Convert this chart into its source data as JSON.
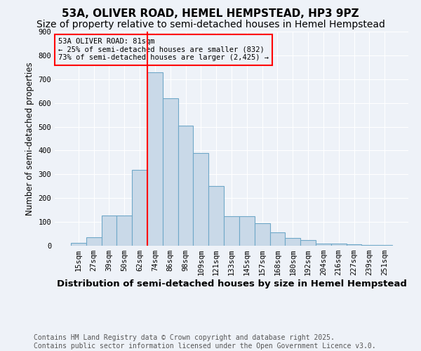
{
  "title": "53A, OLIVER ROAD, HEMEL HEMPSTEAD, HP3 9PZ",
  "subtitle": "Size of property relative to semi-detached houses in Hemel Hempstead",
  "xlabel": "Distribution of semi-detached houses by size in Hemel Hempstead",
  "ylabel": "Number of semi-detached properties",
  "footnote": "Contains HM Land Registry data © Crown copyright and database right 2025.\nContains public sector information licensed under the Open Government Licence v3.0.",
  "bins": [
    "15sqm",
    "27sqm",
    "39sqm",
    "50sqm",
    "62sqm",
    "74sqm",
    "86sqm",
    "98sqm",
    "109sqm",
    "121sqm",
    "133sqm",
    "145sqm",
    "157sqm",
    "168sqm",
    "180sqm",
    "192sqm",
    "204sqm",
    "216sqm",
    "227sqm",
    "239sqm",
    "251sqm"
  ],
  "values": [
    11,
    36,
    127,
    127,
    320,
    730,
    620,
    505,
    390,
    250,
    125,
    125,
    95,
    55,
    32,
    23,
    10,
    8,
    5,
    4,
    4
  ],
  "bar_color": "#c9d9e8",
  "bar_edge_color": "#6fa8c8",
  "vline_bin_index": 5,
  "property_sqm": 81,
  "vline_color": "red",
  "annotation_text": "53A OLIVER ROAD: 81sqm\n← 25% of semi-detached houses are smaller (832)\n73% of semi-detached houses are larger (2,425) →",
  "annotation_box_color": "red",
  "ylim": [
    0,
    900
  ],
  "yticks": [
    0,
    100,
    200,
    300,
    400,
    500,
    600,
    700,
    800,
    900
  ],
  "background_color": "#eef2f8",
  "grid_color": "white",
  "title_fontsize": 11,
  "subtitle_fontsize": 10,
  "xlabel_fontsize": 9.5,
  "ylabel_fontsize": 8.5,
  "tick_fontsize": 7.5,
  "annotation_fontsize": 7.5,
  "footnote_fontsize": 7
}
